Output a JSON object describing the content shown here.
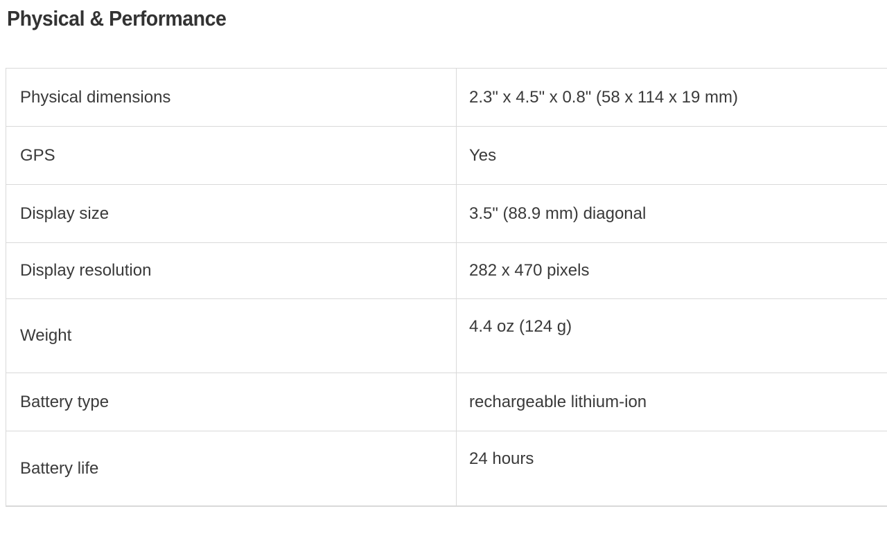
{
  "page": {
    "title": "Physical & Performance"
  },
  "colors": {
    "heading_text": "#333333",
    "body_text": "#3a3a3a",
    "table_border": "#d9d9d9",
    "background": "#ffffff"
  },
  "spec_table": {
    "rows": [
      {
        "label": "Physical dimensions",
        "value": "2.3\" x 4.5\" x 0.8\" (58 x 114 x 19 mm)"
      },
      {
        "label": "GPS",
        "value": "Yes"
      },
      {
        "label": "Display size",
        "value": "3.5\" (88.9 mm) diagonal"
      },
      {
        "label": "Display resolution",
        "value": "282 x 470 pixels"
      },
      {
        "label": "Weight",
        "value": "4.4 oz (124 g)"
      },
      {
        "label": "Battery type",
        "value": "rechargeable lithium-ion"
      },
      {
        "label": "Battery life",
        "value": "24 hours"
      }
    ]
  }
}
